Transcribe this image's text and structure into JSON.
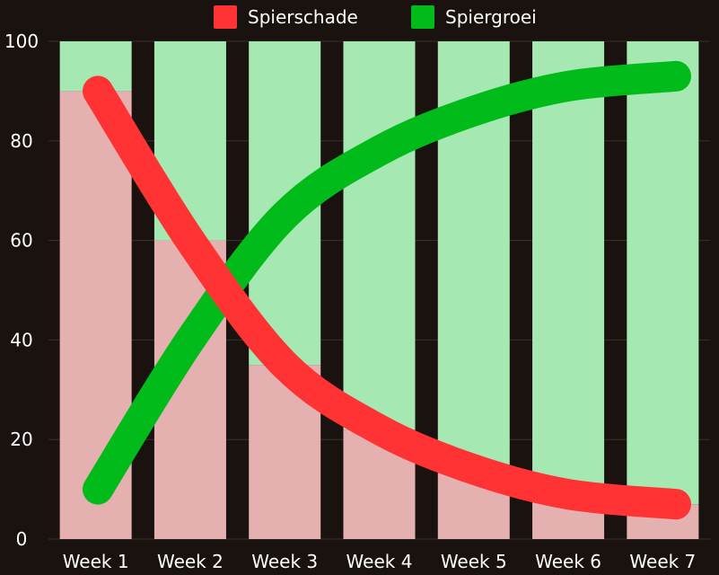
{
  "chart_data": {
    "type": "bar",
    "title": "",
    "xlabel": "",
    "ylabel": "",
    "ylim": [
      0,
      100
    ],
    "yticks": [
      "0",
      "20",
      "40",
      "60",
      "80",
      "100"
    ],
    "categories": [
      "Week 1",
      "Week 2",
      "Week 3",
      "Week 4",
      "Week 5",
      "Week 6",
      "Week 7"
    ],
    "legend_position": "top-center",
    "grid": true,
    "series": [
      {
        "name": "Spierschade",
        "role": "stacked bars + smooth line",
        "values": [
          90,
          60,
          35,
          22,
          14,
          9,
          7
        ],
        "color": "#ff3333",
        "bar_color": "#e4b0b0"
      },
      {
        "name": "Spiergroei",
        "role": "stacked bars + smooth line",
        "values": [
          10,
          40,
          65,
          78,
          86,
          91,
          93
        ],
        "color": "#00bb1a",
        "bar_color": "#a6e8b2"
      }
    ]
  }
}
